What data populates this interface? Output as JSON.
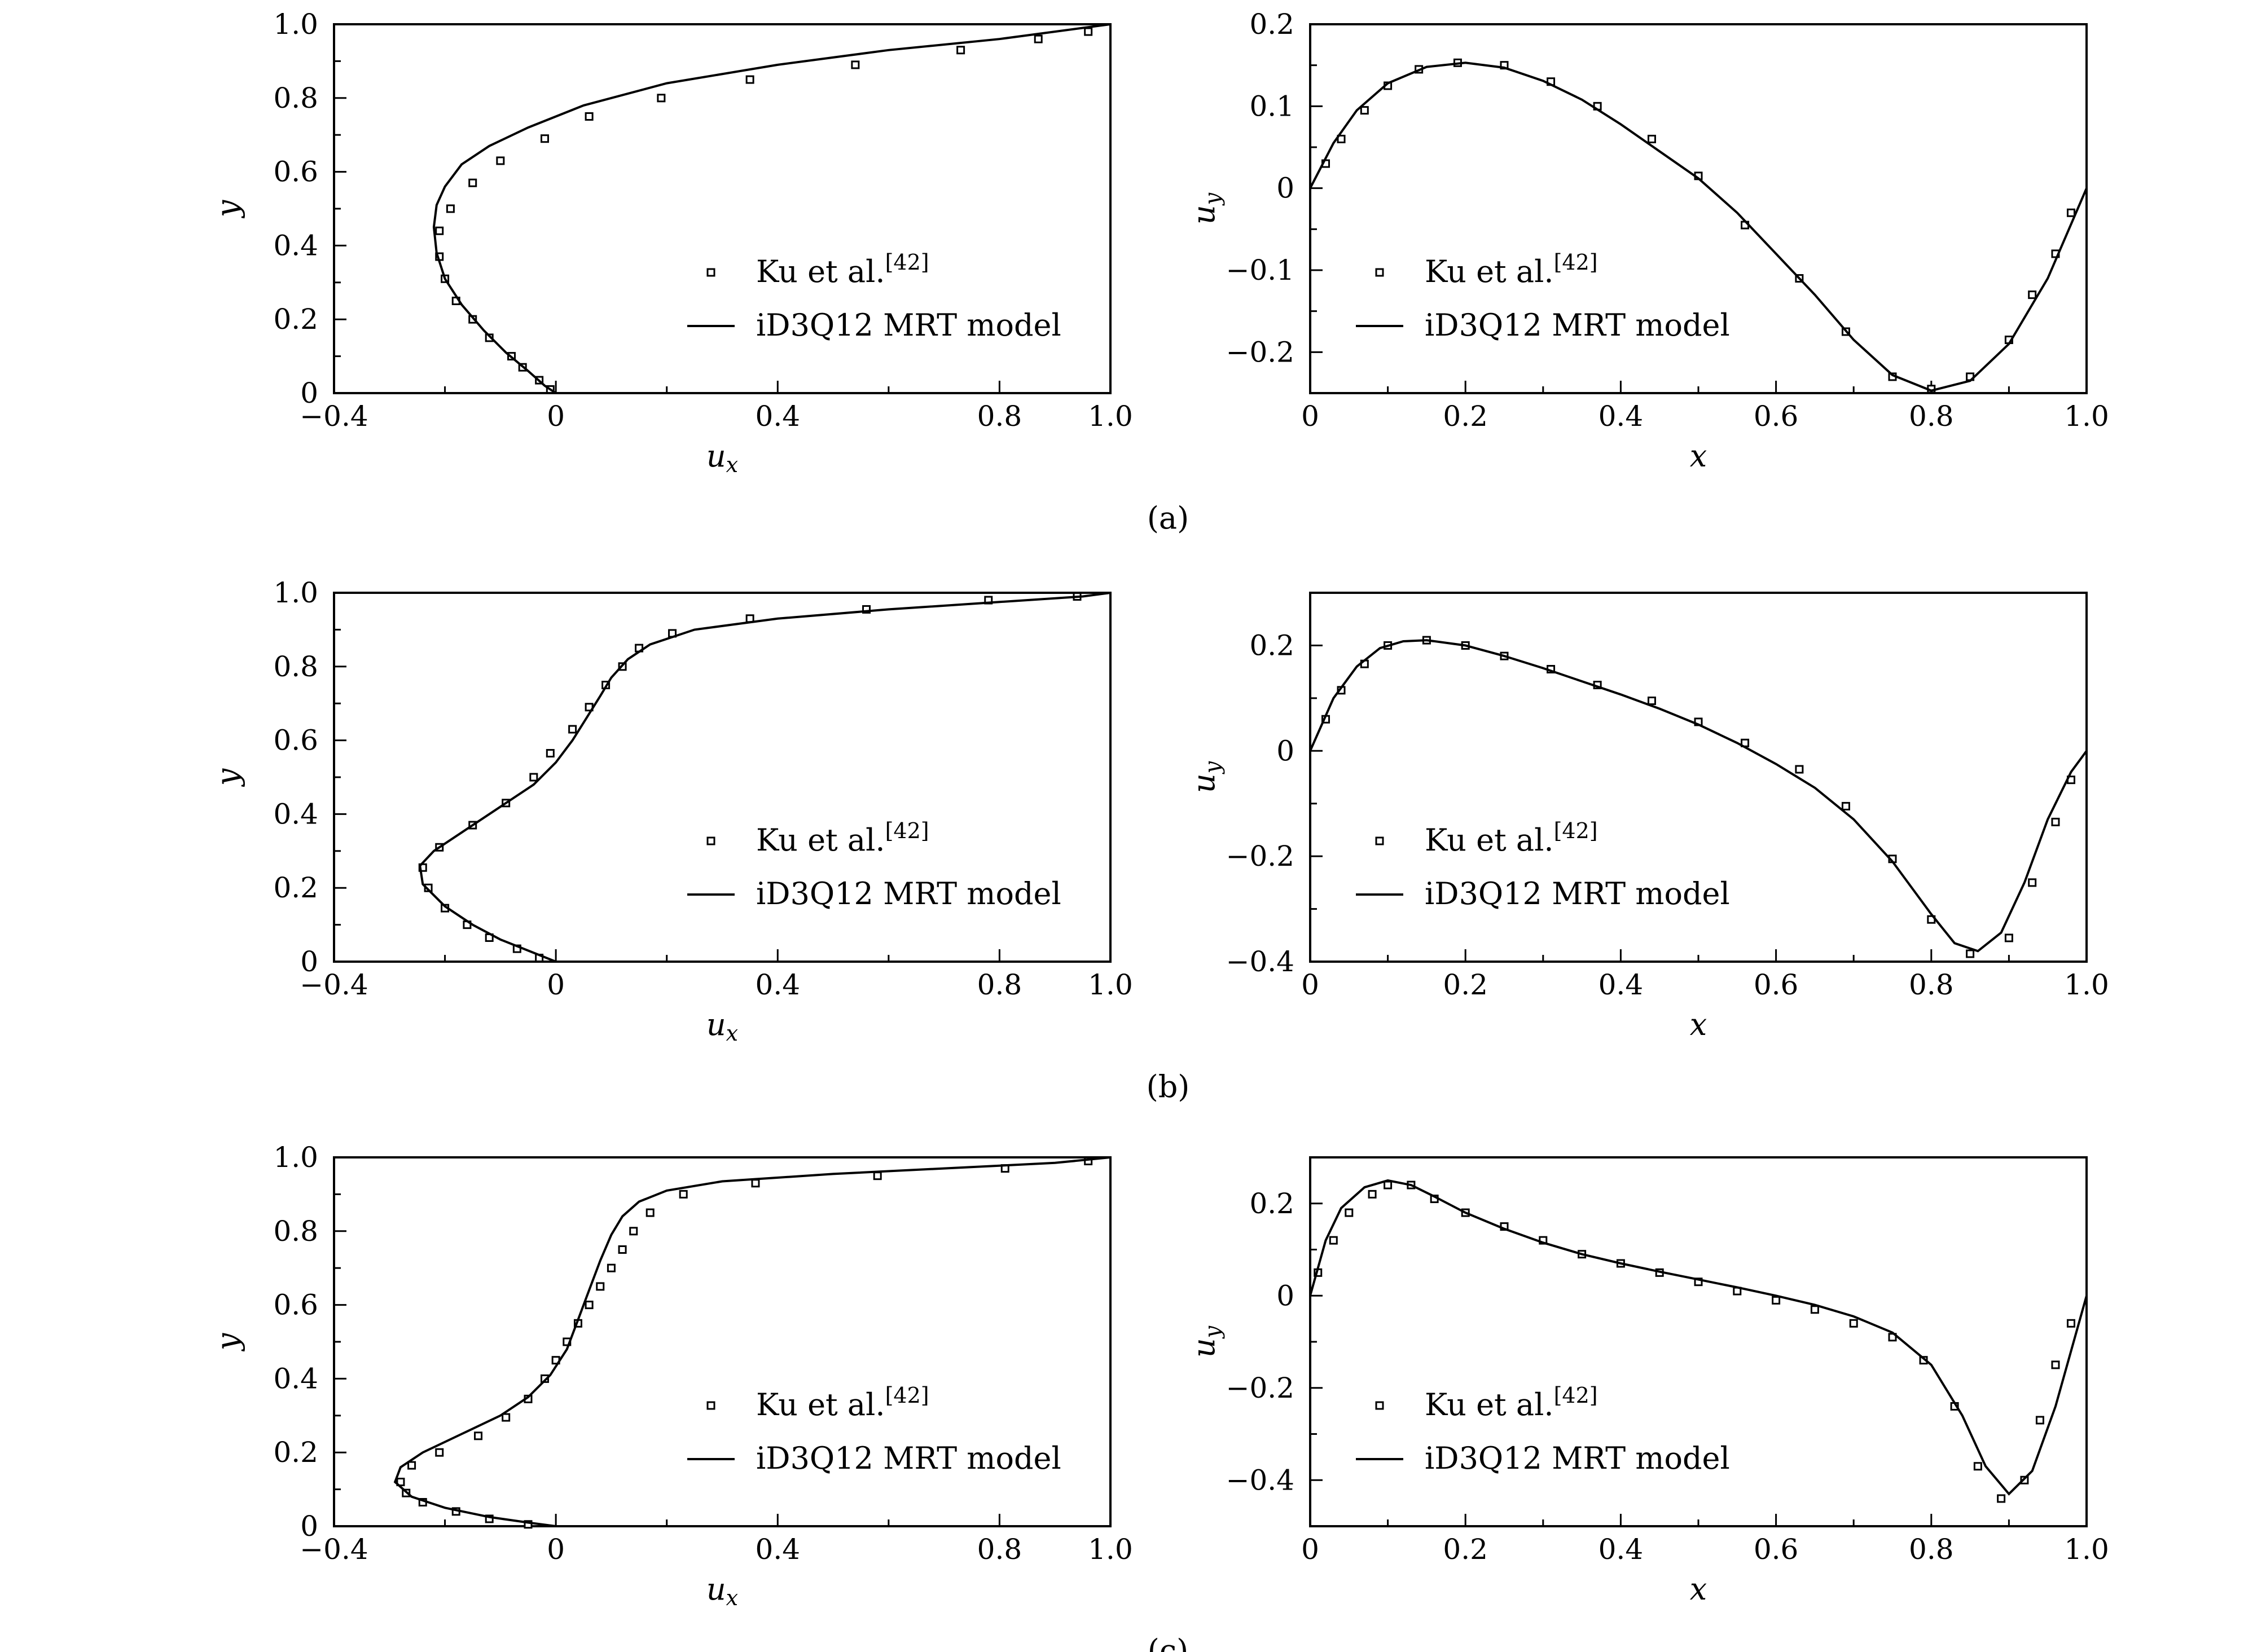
{
  "legend": {
    "marker_label": "Ku et al.",
    "marker_ref": "[42]",
    "line_label": "iD3Q12 MRT model"
  },
  "panel_labels": [
    "(a)",
    "(b)",
    "(c)"
  ],
  "chart_data": [
    {
      "id": "a-ux",
      "row": 0,
      "col": 0,
      "type": "line",
      "xlabel": "u",
      "xlabel_sub": "x",
      "ylabel": "y",
      "xlim": [
        -0.4,
        1.0
      ],
      "ylim": [
        0,
        1.0
      ],
      "xticks": [
        -0.4,
        0,
        0.4,
        0.8
      ],
      "xtick_labels": [
        "−0.4",
        "0",
        "0.4",
        "0.8"
      ],
      "yticks": [
        0,
        0.2,
        0.4,
        0.6,
        0.8,
        1.0
      ],
      "ytick_labels": [
        "0",
        "0.2",
        "0.4",
        "0.6",
        "0.8",
        "1.0"
      ],
      "series": [
        {
          "name": "Ku et al.[42]",
          "kind": "marker",
          "x": [
            -0.01,
            -0.03,
            -0.06,
            -0.08,
            -0.12,
            -0.15,
            -0.18,
            -0.2,
            -0.21,
            -0.21,
            -0.19,
            -0.15,
            -0.1,
            -0.02,
            0.06,
            0.19,
            0.35,
            0.54,
            0.73,
            0.87,
            0.96
          ],
          "y": [
            0.01,
            0.035,
            0.07,
            0.1,
            0.15,
            0.2,
            0.25,
            0.31,
            0.37,
            0.44,
            0.5,
            0.57,
            0.63,
            0.69,
            0.75,
            0.8,
            0.85,
            0.89,
            0.93,
            0.96,
            0.98
          ]
        },
        {
          "name": "iD3Q12 MRT model",
          "kind": "line",
          "x": [
            0,
            -0.02,
            -0.05,
            -0.09,
            -0.13,
            -0.17,
            -0.2,
            -0.215,
            -0.22,
            -0.215,
            -0.2,
            -0.17,
            -0.12,
            -0.05,
            0.05,
            0.2,
            0.4,
            0.6,
            0.8,
            0.95,
            1.0
          ],
          "y": [
            0,
            0.02,
            0.06,
            0.11,
            0.17,
            0.24,
            0.31,
            0.38,
            0.45,
            0.51,
            0.56,
            0.62,
            0.67,
            0.72,
            0.78,
            0.84,
            0.89,
            0.93,
            0.96,
            0.99,
            1.0
          ]
        }
      ]
    },
    {
      "id": "a-uy",
      "row": 0,
      "col": 1,
      "type": "line",
      "xlabel": "x",
      "xlabel_sub": "",
      "ylabel": "u",
      "ylabel_sub": "y",
      "xlim": [
        0,
        1.0
      ],
      "ylim": [
        -0.25,
        0.2
      ],
      "xticks": [
        0,
        0.2,
        0.4,
        0.6,
        0.8,
        1.0
      ],
      "xtick_labels": [
        "0",
        "0.2",
        "0.4",
        "0.6",
        "0.8",
        "1.0"
      ],
      "yticks": [
        -0.2,
        -0.1,
        0,
        0.1,
        0.2
      ],
      "ytick_labels": [
        "−0.2",
        "−0.1",
        "0",
        "0.1",
        "0.2"
      ],
      "series": [
        {
          "name": "Ku et al.[42]",
          "kind": "marker",
          "x": [
            0.02,
            0.04,
            0.07,
            0.1,
            0.14,
            0.19,
            0.25,
            0.31,
            0.37,
            0.44,
            0.5,
            0.56,
            0.63,
            0.69,
            0.75,
            0.8,
            0.85,
            0.9,
            0.93,
            0.96,
            0.98
          ],
          "y": [
            0.03,
            0.06,
            0.095,
            0.125,
            0.145,
            0.153,
            0.15,
            0.13,
            0.1,
            0.06,
            0.015,
            -0.045,
            -0.11,
            -0.175,
            -0.23,
            -0.245,
            -0.23,
            -0.185,
            -0.13,
            -0.08,
            -0.03
          ]
        },
        {
          "name": "iD3Q12 MRT model",
          "kind": "line",
          "x": [
            0,
            0.03,
            0.06,
            0.1,
            0.15,
            0.2,
            0.25,
            0.3,
            0.35,
            0.4,
            0.45,
            0.5,
            0.55,
            0.6,
            0.65,
            0.7,
            0.75,
            0.8,
            0.85,
            0.9,
            0.95,
            1.0
          ],
          "y": [
            0,
            0.055,
            0.095,
            0.128,
            0.148,
            0.153,
            0.147,
            0.131,
            0.108,
            0.078,
            0.045,
            0.012,
            -0.03,
            -0.08,
            -0.13,
            -0.185,
            -0.228,
            -0.247,
            -0.235,
            -0.19,
            -0.11,
            0
          ]
        }
      ]
    },
    {
      "id": "b-ux",
      "row": 1,
      "col": 0,
      "type": "line",
      "xlabel": "u",
      "xlabel_sub": "x",
      "ylabel": "y",
      "xlim": [
        -0.4,
        1.0
      ],
      "ylim": [
        0,
        1.0
      ],
      "xticks": [
        -0.4,
        0,
        0.4,
        0.8
      ],
      "xtick_labels": [
        "−0.4",
        "0",
        "0.4",
        "0.8"
      ],
      "yticks": [
        0,
        0.2,
        0.4,
        0.6,
        0.8,
        1.0
      ],
      "ytick_labels": [
        "0",
        "0.2",
        "0.4",
        "0.6",
        "0.8",
        "1.0"
      ],
      "series": [
        {
          "name": "Ku et al.[42]",
          "kind": "marker",
          "x": [
            -0.03,
            -0.07,
            -0.12,
            -0.16,
            -0.2,
            -0.23,
            -0.24,
            -0.21,
            -0.15,
            -0.09,
            -0.04,
            -0.01,
            0.03,
            0.06,
            0.09,
            0.12,
            0.15,
            0.21,
            0.35,
            0.56,
            0.78,
            0.94
          ],
          "y": [
            0.01,
            0.035,
            0.065,
            0.1,
            0.145,
            0.2,
            0.255,
            0.31,
            0.37,
            0.43,
            0.5,
            0.565,
            0.63,
            0.69,
            0.75,
            0.8,
            0.85,
            0.89,
            0.93,
            0.955,
            0.98,
            0.99
          ]
        },
        {
          "name": "iD3Q12 MRT model",
          "kind": "line",
          "x": [
            0,
            -0.05,
            -0.1,
            -0.15,
            -0.2,
            -0.24,
            -0.245,
            -0.22,
            -0.17,
            -0.1,
            -0.04,
            0.0,
            0.03,
            0.055,
            0.08,
            0.1,
            0.13,
            0.17,
            0.25,
            0.4,
            0.6,
            0.8,
            0.95,
            1.0
          ],
          "y": [
            0,
            0.03,
            0.06,
            0.1,
            0.15,
            0.21,
            0.26,
            0.3,
            0.35,
            0.42,
            0.48,
            0.54,
            0.6,
            0.66,
            0.72,
            0.77,
            0.82,
            0.86,
            0.9,
            0.93,
            0.955,
            0.975,
            0.99,
            1.0
          ]
        }
      ]
    },
    {
      "id": "b-uy",
      "row": 1,
      "col": 1,
      "type": "line",
      "xlabel": "x",
      "xlabel_sub": "",
      "ylabel": "u",
      "ylabel_sub": "y",
      "xlim": [
        0,
        1.0
      ],
      "ylim": [
        -0.4,
        0.3
      ],
      "xticks": [
        0,
        0.2,
        0.4,
        0.6,
        0.8,
        1.0
      ],
      "xtick_labels": [
        "0",
        "0.2",
        "0.4",
        "0.6",
        "0.8",
        "1.0"
      ],
      "yticks": [
        -0.4,
        -0.2,
        0,
        0.2
      ],
      "ytick_labels": [
        "−0.4",
        "−0.2",
        "0",
        "0.2"
      ],
      "series": [
        {
          "name": "Ku et al.[42]",
          "kind": "marker",
          "x": [
            0.02,
            0.04,
            0.07,
            0.1,
            0.15,
            0.2,
            0.25,
            0.31,
            0.37,
            0.44,
            0.5,
            0.56,
            0.63,
            0.69,
            0.75,
            0.8,
            0.85,
            0.9,
            0.93,
            0.96,
            0.98
          ],
          "y": [
            0.06,
            0.115,
            0.165,
            0.2,
            0.21,
            0.2,
            0.18,
            0.155,
            0.125,
            0.095,
            0.055,
            0.015,
            -0.035,
            -0.105,
            -0.205,
            -0.32,
            -0.385,
            -0.355,
            -0.25,
            -0.135,
            -0.055
          ]
        },
        {
          "name": "iD3Q12 MRT model",
          "kind": "line",
          "x": [
            0,
            0.03,
            0.06,
            0.09,
            0.12,
            0.15,
            0.2,
            0.25,
            0.3,
            0.35,
            0.4,
            0.45,
            0.5,
            0.55,
            0.6,
            0.65,
            0.7,
            0.75,
            0.8,
            0.83,
            0.86,
            0.89,
            0.92,
            0.95,
            0.98,
            1.0
          ],
          "y": [
            0,
            0.1,
            0.16,
            0.195,
            0.208,
            0.21,
            0.2,
            0.18,
            0.157,
            0.132,
            0.107,
            0.08,
            0.05,
            0.015,
            -0.025,
            -0.07,
            -0.13,
            -0.21,
            -0.31,
            -0.365,
            -0.38,
            -0.345,
            -0.25,
            -0.13,
            -0.04,
            0
          ]
        }
      ]
    },
    {
      "id": "c-ux",
      "row": 2,
      "col": 0,
      "type": "line",
      "xlabel": "u",
      "xlabel_sub": "x",
      "ylabel": "y",
      "xlim": [
        -0.4,
        1.0
      ],
      "ylim": [
        0,
        1.0
      ],
      "xticks": [
        -0.4,
        0,
        0.4,
        0.8
      ],
      "xtick_labels": [
        "−0.4",
        "0",
        "0.4",
        "0.8"
      ],
      "yticks": [
        0,
        0.2,
        0.4,
        0.6,
        0.8,
        1.0
      ],
      "ytick_labels": [
        "0",
        "0.2",
        "0.4",
        "0.6",
        "0.8",
        "1.0"
      ],
      "series": [
        {
          "name": "Ku et al.[42]",
          "kind": "marker",
          "x": [
            -0.05,
            -0.12,
            -0.18,
            -0.24,
            -0.27,
            -0.28,
            -0.26,
            -0.21,
            -0.14,
            -0.09,
            -0.05,
            -0.02,
            0.0,
            0.02,
            0.04,
            0.06,
            0.08,
            0.1,
            0.12,
            0.14,
            0.17,
            0.23,
            0.36,
            0.58,
            0.81,
            0.96
          ],
          "y": [
            0.005,
            0.02,
            0.04,
            0.065,
            0.09,
            0.12,
            0.165,
            0.2,
            0.245,
            0.295,
            0.345,
            0.4,
            0.45,
            0.5,
            0.55,
            0.6,
            0.65,
            0.7,
            0.75,
            0.8,
            0.85,
            0.9,
            0.93,
            0.95,
            0.97,
            0.99
          ]
        },
        {
          "name": "iD3Q12 MRT model",
          "kind": "line",
          "x": [
            0,
            -0.05,
            -0.12,
            -0.2,
            -0.26,
            -0.29,
            -0.28,
            -0.24,
            -0.17,
            -0.1,
            -0.05,
            -0.01,
            0.02,
            0.04,
            0.06,
            0.08,
            0.1,
            0.12,
            0.15,
            0.2,
            0.3,
            0.5,
            0.7,
            0.9,
            1.0
          ],
          "y": [
            0,
            0.01,
            0.025,
            0.05,
            0.08,
            0.12,
            0.16,
            0.2,
            0.25,
            0.3,
            0.35,
            0.41,
            0.48,
            0.56,
            0.64,
            0.72,
            0.79,
            0.84,
            0.88,
            0.91,
            0.935,
            0.955,
            0.97,
            0.985,
            1.0
          ]
        }
      ]
    },
    {
      "id": "c-uy",
      "row": 2,
      "col": 1,
      "type": "line",
      "xlabel": "x",
      "xlabel_sub": "",
      "ylabel": "u",
      "ylabel_sub": "y",
      "xlim": [
        0,
        1.0
      ],
      "ylim": [
        -0.5,
        0.3
      ],
      "xticks": [
        0,
        0.2,
        0.4,
        0.6,
        0.8,
        1.0
      ],
      "xtick_labels": [
        "0",
        "0.2",
        "0.4",
        "0.6",
        "0.8",
        "1.0"
      ],
      "yticks": [
        -0.4,
        -0.2,
        0,
        0.2
      ],
      "ytick_labels": [
        "−0.4",
        "−0.2",
        "0",
        "0.2"
      ],
      "series": [
        {
          "name": "Ku et al.[42]",
          "kind": "marker",
          "x": [
            0.01,
            0.03,
            0.05,
            0.08,
            0.1,
            0.13,
            0.16,
            0.2,
            0.25,
            0.3,
            0.35,
            0.4,
            0.45,
            0.5,
            0.55,
            0.6,
            0.65,
            0.7,
            0.75,
            0.79,
            0.83,
            0.86,
            0.89,
            0.92,
            0.94,
            0.96,
            0.98
          ],
          "y": [
            0.05,
            0.12,
            0.18,
            0.22,
            0.24,
            0.24,
            0.21,
            0.18,
            0.15,
            0.12,
            0.09,
            0.07,
            0.05,
            0.03,
            0.01,
            -0.01,
            -0.03,
            -0.06,
            -0.09,
            -0.14,
            -0.24,
            -0.37,
            -0.44,
            -0.4,
            -0.27,
            -0.15,
            -0.06
          ]
        },
        {
          "name": "iD3Q12 MRT model",
          "kind": "line",
          "x": [
            0,
            0.02,
            0.04,
            0.07,
            0.1,
            0.13,
            0.16,
            0.2,
            0.25,
            0.3,
            0.35,
            0.4,
            0.45,
            0.5,
            0.55,
            0.6,
            0.65,
            0.7,
            0.75,
            0.8,
            0.84,
            0.87,
            0.9,
            0.93,
            0.96,
            0.98,
            1.0
          ],
          "y": [
            0,
            0.12,
            0.19,
            0.235,
            0.25,
            0.24,
            0.215,
            0.18,
            0.145,
            0.115,
            0.09,
            0.07,
            0.052,
            0.035,
            0.018,
            0.0,
            -0.02,
            -0.045,
            -0.08,
            -0.15,
            -0.26,
            -0.37,
            -0.43,
            -0.38,
            -0.24,
            -0.12,
            0
          ]
        }
      ]
    }
  ]
}
